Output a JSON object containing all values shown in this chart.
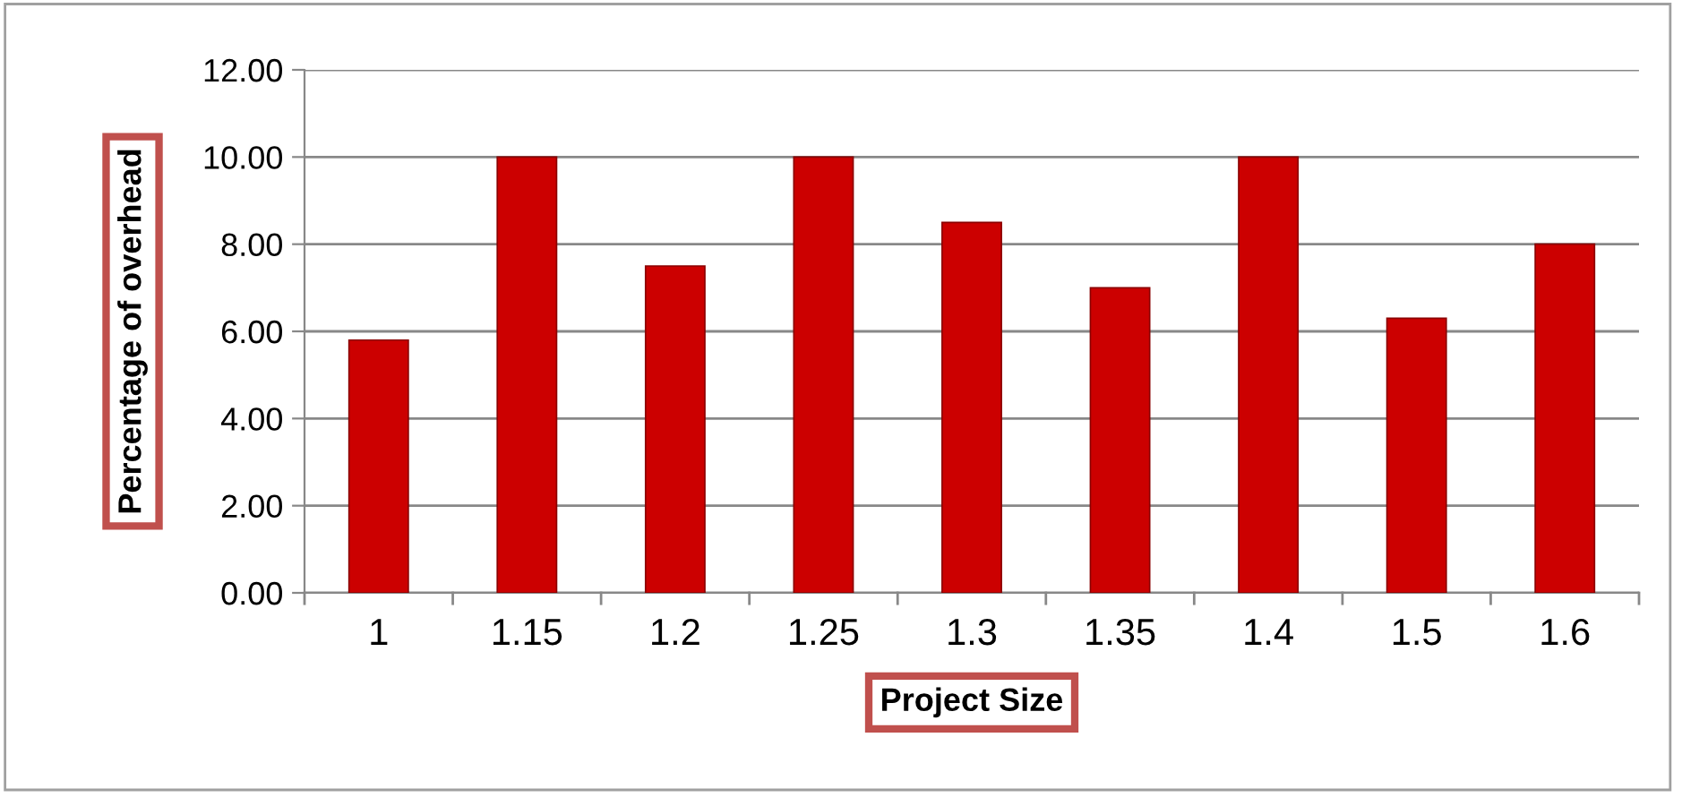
{
  "chart_data": {
    "type": "bar",
    "xlabel": "Project Size",
    "ylabel": "Percentage of overhead",
    "categories": [
      "1",
      "1.15",
      "1.2",
      "1.25",
      "1.3",
      "1.35",
      "1.4",
      "1.5",
      "1.6"
    ],
    "values": [
      5.8,
      10,
      7.5,
      10,
      8.5,
      7,
      10,
      6.3,
      8
    ],
    "color": "#cc0000",
    "ylim": [
      0,
      12
    ],
    "yticks": [
      {
        "value": 0,
        "label": "0.00"
      },
      {
        "value": 2,
        "label": "2.00"
      },
      {
        "value": 4,
        "label": "4.00"
      },
      {
        "value": 6,
        "label": "6.00"
      },
      {
        "value": 8,
        "label": "8.00"
      },
      {
        "value": 10,
        "label": "10.00"
      },
      {
        "value": 12,
        "label": "12.00"
      }
    ],
    "grid": "y",
    "legend": false
  }
}
